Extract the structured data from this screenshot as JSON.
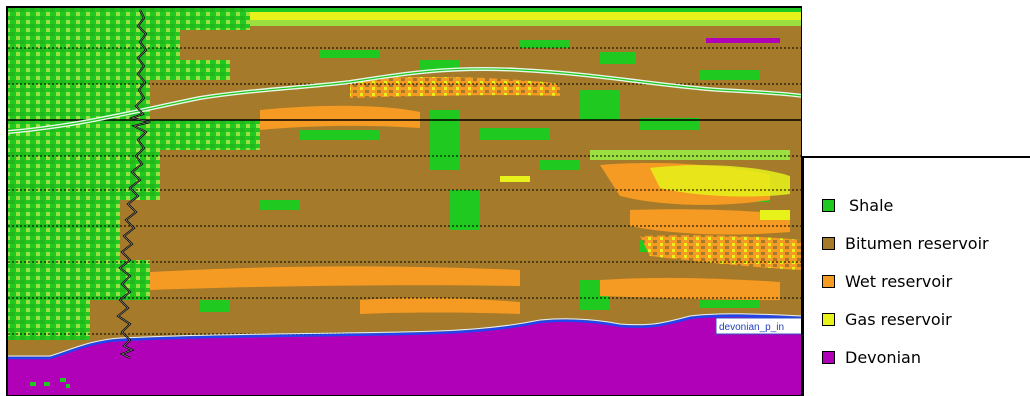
{
  "colors": {
    "shale": "#1fc91f",
    "bitumen": "#a57a2a",
    "wet": "#f59a22",
    "gas": "#e6f21a",
    "devonian": "#b000b8",
    "light_green": "#9be040"
  },
  "horizon_label": "devonian_p_in",
  "legend": [
    {
      "label": "Shale",
      "color": "#1fc91f"
    },
    {
      "label": "Bitumen reservoir",
      "color": "#a57a2a"
    },
    {
      "label": "Wet reservoir",
      "color": "#f59a22"
    },
    {
      "label": "Gas reservoir",
      "color": "#e6f21a"
    },
    {
      "label": "Devonian",
      "color": "#b000b8"
    }
  ]
}
